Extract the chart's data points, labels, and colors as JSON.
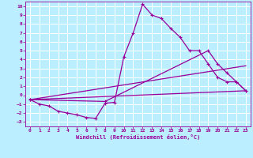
{
  "xlabel": "Windchill (Refroidissement éolien,°C)",
  "bg_color": "#bbeeff",
  "grid_color": "#ffffff",
  "line_color": "#990099",
  "xlim": [
    -0.5,
    23.5
  ],
  "ylim": [
    -3.5,
    10.5
  ],
  "xticks": [
    0,
    1,
    2,
    3,
    4,
    5,
    6,
    7,
    8,
    9,
    10,
    11,
    12,
    13,
    14,
    15,
    16,
    17,
    18,
    19,
    20,
    21,
    22,
    23
  ],
  "yticks": [
    -3,
    -2,
    -1,
    0,
    1,
    2,
    3,
    4,
    5,
    6,
    7,
    8,
    9,
    10
  ],
  "curve_main": {
    "x": [
      0,
      1,
      2,
      3,
      4,
      5,
      6,
      7,
      8,
      9,
      10,
      11,
      12,
      13,
      14,
      15,
      16,
      17,
      18,
      19,
      20,
      21,
      22,
      23
    ],
    "y": [
      -0.5,
      -1.0,
      -1.2,
      -1.8,
      -2.0,
      -2.2,
      -2.5,
      -2.6,
      -0.9,
      -0.8,
      4.3,
      7.0,
      10.2,
      9.0,
      8.6,
      7.5,
      6.5,
      5.0,
      5.0,
      3.5,
      2.0,
      1.5,
      1.5,
      0.5
    ]
  },
  "curve_line1": {
    "x": [
      0,
      23
    ],
    "y": [
      -0.5,
      0.5
    ]
  },
  "curve_line2": {
    "x": [
      0,
      23
    ],
    "y": [
      -0.5,
      3.3
    ]
  },
  "curve_upper": {
    "x": [
      0,
      8,
      19,
      20,
      21,
      22,
      23
    ],
    "y": [
      -0.5,
      -0.7,
      5.0,
      3.5,
      2.5,
      1.5,
      0.5
    ]
  }
}
